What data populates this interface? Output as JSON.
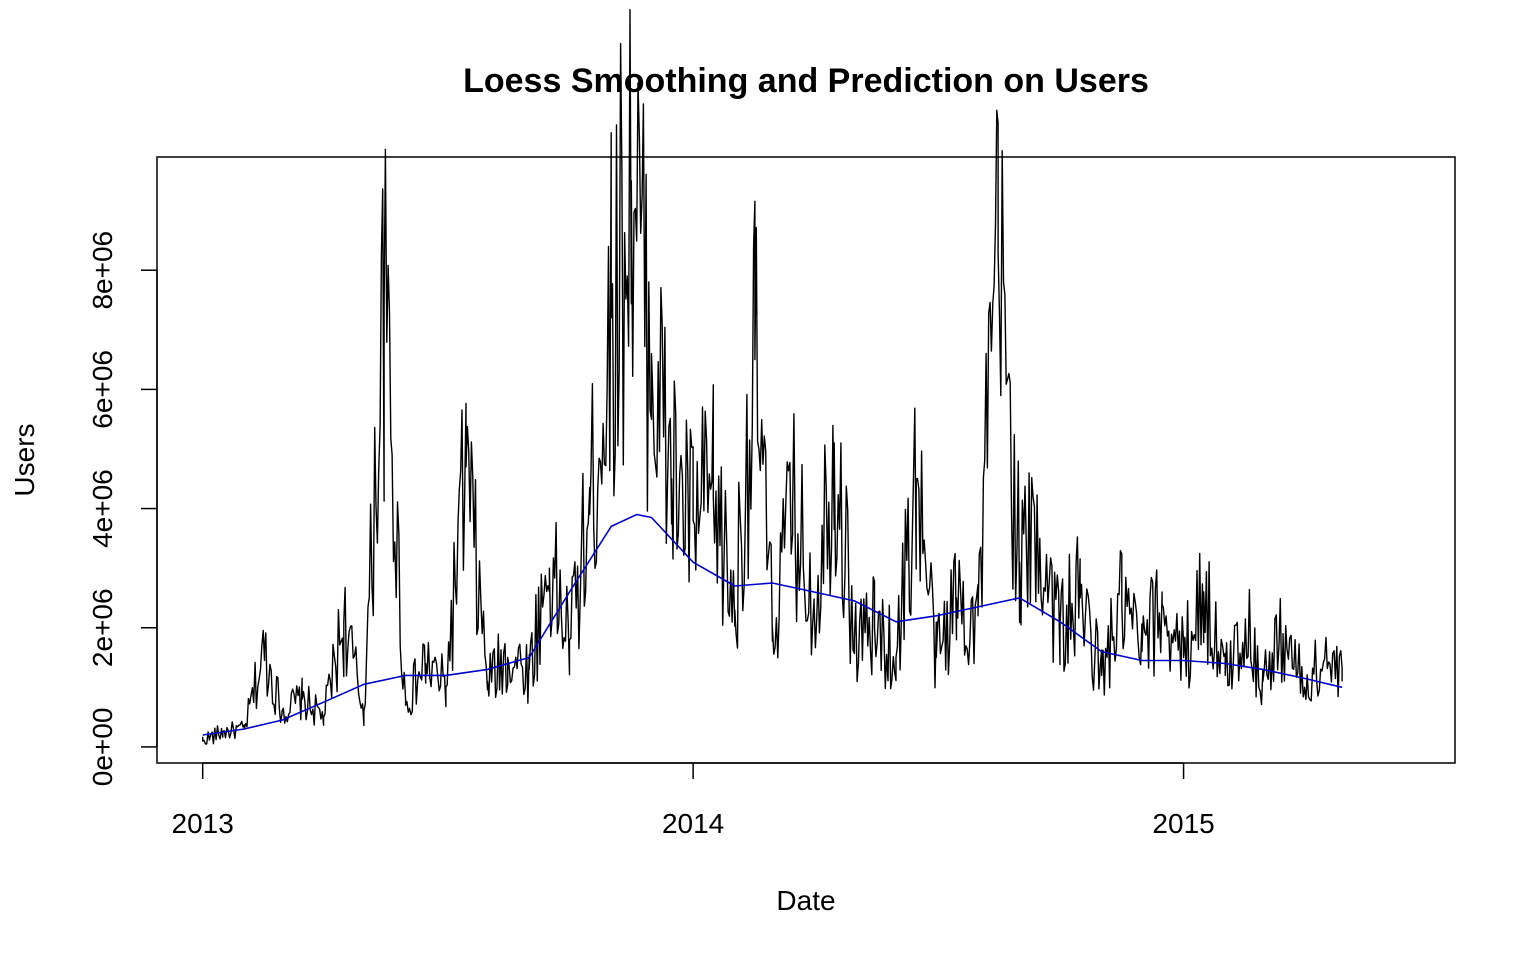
{
  "chart_data": {
    "type": "line",
    "title": "Loess Smoothing and Prediction on Users",
    "xlabel": "Date",
    "ylabel": "Users",
    "x_ticks": [
      "2013",
      "2014",
      "2015"
    ],
    "y_ticks": [
      "0e+00",
      "2e+06",
      "4e+06",
      "6e+06",
      "8e+06"
    ],
    "xlim": [
      "2012-11-28",
      "2015-07-22"
    ],
    "ylim": [
      -270000,
      9900000
    ],
    "x_date_range": [
      "2013-01-01",
      "2015-04-29"
    ],
    "grid": false,
    "colors": {
      "raw": "#000000",
      "smooth": "#0000cd",
      "frame": "#000000"
    },
    "series": [
      {
        "style": "raw",
        "x": [
          "2013-01-01",
          "2013-01-16",
          "2013-02-01",
          "2013-02-16",
          "2013-03-01",
          "2013-03-16",
          "2013-04-01",
          "2013-04-16",
          "2013-05-01",
          "2013-05-16",
          "2013-06-01",
          "2013-06-16",
          "2013-07-01",
          "2013-07-16",
          "2013-08-01",
          "2013-08-16",
          "2013-09-01",
          "2013-09-16",
          "2013-10-01",
          "2013-10-16",
          "2013-11-01",
          "2013-11-16",
          "2013-12-01",
          "2013-12-16",
          "2014-01-01",
          "2014-01-16",
          "2014-02-01",
          "2014-02-16",
          "2014-03-01",
          "2014-03-16",
          "2014-04-01",
          "2014-04-16",
          "2014-05-01",
          "2014-05-16",
          "2014-06-01",
          "2014-06-16",
          "2014-07-01",
          "2014-07-16",
          "2014-08-01",
          "2014-08-16",
          "2014-09-01",
          "2014-09-16",
          "2014-10-01",
          "2014-10-16",
          "2014-11-01",
          "2014-11-16",
          "2014-12-01",
          "2014-12-16",
          "2015-01-01",
          "2015-01-16",
          "2015-02-01",
          "2015-02-16",
          "2015-03-01",
          "2015-03-16",
          "2015-04-01",
          "2015-04-16",
          "2015-04-29"
        ],
        "values": [
          100000,
          250000,
          300000,
          1600000,
          600000,
          800000,
          500000,
          2100000,
          600000,
          7400000,
          700000,
          1400000,
          1000000,
          4700000,
          1100000,
          1500000,
          1300000,
          3000000,
          1800000,
          3900000,
          7200000,
          9500000,
          6600000,
          4500000,
          3800000,
          4200000,
          2300000,
          6500000,
          2000000,
          4000000,
          2400000,
          5100000,
          1800000,
          2000000,
          1500000,
          4500000,
          1500000,
          2500000,
          2200000,
          8300000,
          3100000,
          3500000,
          2000000,
          2500000,
          1200000,
          2400000,
          1600000,
          2400000,
          1500000,
          2600000,
          1200000,
          2100000,
          1100000,
          1900000,
          1000000,
          1500000,
          1100000
        ]
      },
      {
        "style": "smooth",
        "x": [
          "2013-01-01",
          "2013-02-01",
          "2013-03-01",
          "2013-04-01",
          "2013-05-01",
          "2013-06-01",
          "2013-07-01",
          "2013-08-01",
          "2013-09-01",
          "2013-10-01",
          "2013-11-01",
          "2013-11-20",
          "2013-12-01",
          "2014-01-01",
          "2014-02-01",
          "2014-03-01",
          "2014-04-01",
          "2014-05-01",
          "2014-06-01",
          "2014-07-01",
          "2014-08-01",
          "2014-09-01",
          "2014-10-01",
          "2014-11-01",
          "2014-12-01",
          "2015-01-01",
          "2015-02-01",
          "2015-03-01",
          "2015-04-01",
          "2015-04-29"
        ],
        "values": [
          200000,
          300000,
          450000,
          750000,
          1050000,
          1200000,
          1200000,
          1300000,
          1500000,
          2600000,
          3700000,
          3900000,
          3850000,
          3100000,
          2700000,
          2750000,
          2600000,
          2450000,
          2100000,
          2200000,
          2350000,
          2500000,
          2100000,
          1600000,
          1450000,
          1450000,
          1400000,
          1300000,
          1150000,
          1000000
        ]
      }
    ]
  }
}
